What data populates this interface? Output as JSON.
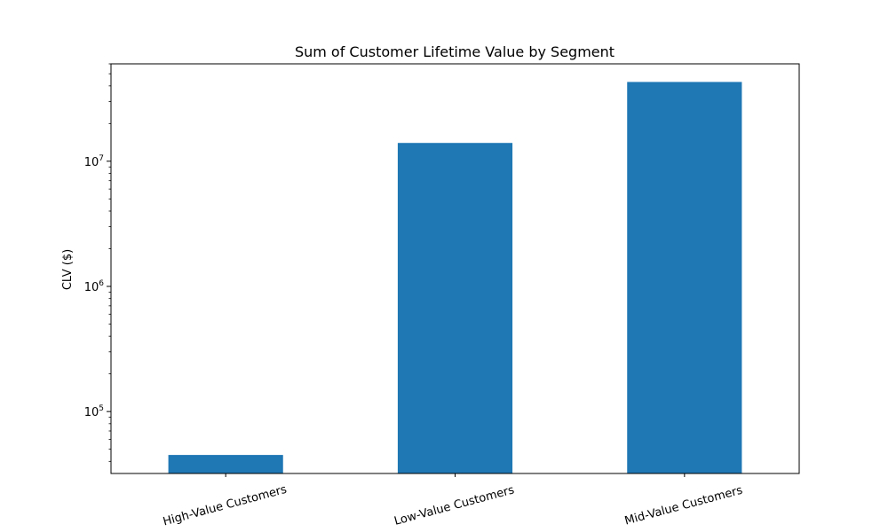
{
  "chart_data": {
    "type": "bar",
    "title": "Sum of Customer Lifetime Value by Segment",
    "xlabel": "",
    "ylabel": "CLV ($)",
    "yscale": "log",
    "ylim": [
      32000,
      60000000
    ],
    "categories": [
      "High-Value Customers",
      "Low-Value Customers",
      "Mid-Value Customers"
    ],
    "values": [
      45000,
      14000000,
      43000000
    ],
    "bar_color": "#1f77b4",
    "grid": false,
    "y_ticks": [
      {
        "value": 100000,
        "base": "10",
        "exp": "5"
      },
      {
        "value": 1000000,
        "base": "10",
        "exp": "6"
      },
      {
        "value": 10000000,
        "base": "10",
        "exp": "7"
      }
    ]
  }
}
